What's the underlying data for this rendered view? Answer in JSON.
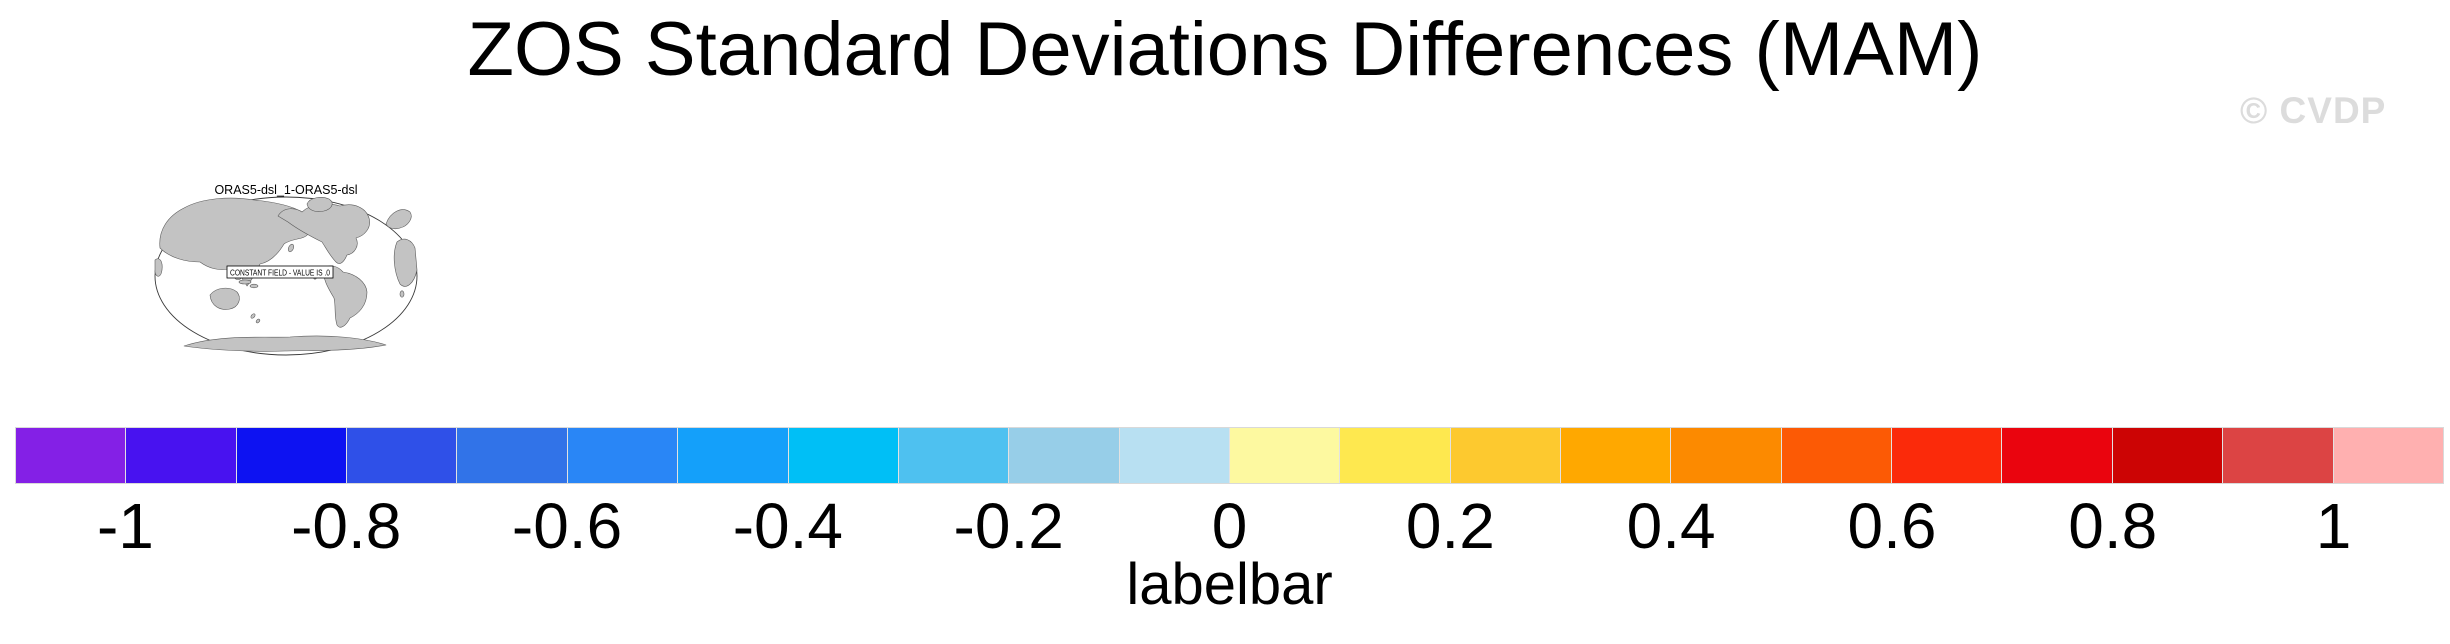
{
  "header": {
    "title": "ZOS Standard Deviations Differences (MAM)",
    "watermark": "© CVDP"
  },
  "map_panel": {
    "title": "ORAS5-dsl_1-ORAS5-dsl",
    "overlay_label": "CONSTANT FIELD - VALUE IS .0",
    "land_color": "#c3c3c3",
    "outline_color": "#4a4a4a"
  },
  "chart_data": {
    "type": "colorbar",
    "title": "labelbar",
    "orientation": "horizontal",
    "value_range": [
      -1.1,
      1.1
    ],
    "segment_interval": 0.1,
    "tick_values": [
      -1,
      -0.8,
      -0.6,
      -0.4,
      -0.2,
      0,
      0.2,
      0.4,
      0.6,
      0.8,
      1
    ],
    "tick_labels": [
      "-1",
      "-0.8",
      "-0.6",
      "-0.4",
      "-0.2",
      "0",
      "0.2",
      "0.4",
      "0.6",
      "0.8",
      "1"
    ],
    "segment_colors": [
      "#8420E6",
      "#4812F0",
      "#0D12F2",
      "#2F50E8",
      "#3173E8",
      "#2986F6",
      "#14A0FA",
      "#00BFF6",
      "#4EC1F0",
      "#97CEE8",
      "#B8E0F2",
      "#FDF9A0",
      "#FEE84F",
      "#FDC92F",
      "#FFA800",
      "#FC8A00",
      "#FC5A05",
      "#FB2A0A",
      "#EA040E",
      "#CC0404",
      "#DC4444",
      "#FFB0B0"
    ]
  }
}
